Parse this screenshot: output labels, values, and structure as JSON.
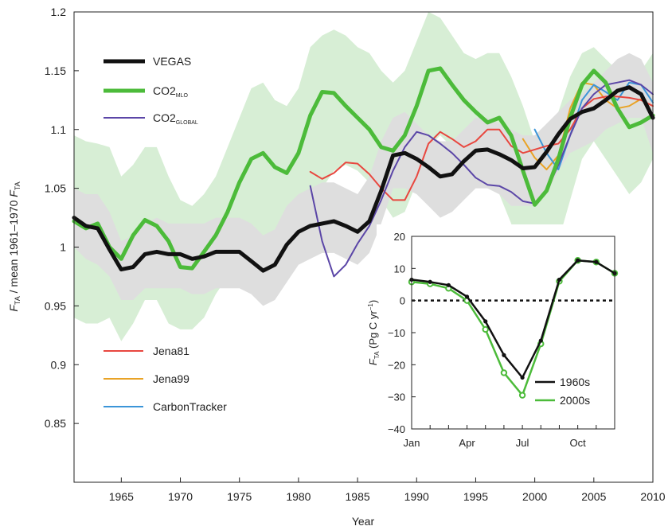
{
  "chart_data": [
    {
      "type": "line",
      "xlabel": "Year",
      "ylabel_main": "F",
      "ylabel_sub": "TA",
      "ylabel_rest": " / mean 1961–1970 ",
      "ylabel_tail_main": "F",
      "ylabel_tail_sub": "TA",
      "xlim": [
        1961,
        2010
      ],
      "ylim": [
        0.8,
        1.2
      ],
      "xticks": [
        1965,
        1970,
        1975,
        1980,
        1985,
        1990,
        1995,
        2000,
        2005,
        2010
      ],
      "yticks": [
        0.85,
        0.9,
        0.95,
        1,
        1.05,
        1.1,
        1.15,
        1.2
      ],
      "ytick_labels": [
        "0.85",
        "0.9",
        "0.95",
        "1",
        "1.05",
        "1.1",
        "1.15",
        "1.2"
      ],
      "bands": [
        {
          "name": "CO2 MLO uncertainty",
          "color": "#d7eed5",
          "x": [
            1961,
            1962,
            1963,
            1964,
            1965,
            1966,
            1967,
            1968,
            1969,
            1970,
            1971,
            1972,
            1973,
            1974,
            1975,
            1976,
            1977,
            1978,
            1979,
            1980,
            1981,
            1982,
            1983,
            1984,
            1985,
            1986,
            1987,
            1988,
            1989,
            1990,
            1991,
            1992,
            1993,
            1994,
            1995,
            1996,
            1997,
            1998,
            1999,
            2000,
            2001,
            2002,
            2003,
            2004,
            2005,
            2006,
            2007,
            2008,
            2009,
            2010
          ],
          "upper": [
            1.095,
            1.09,
            1.088,
            1.085,
            1.06,
            1.07,
            1.085,
            1.085,
            1.06,
            1.04,
            1.035,
            1.045,
            1.06,
            1.085,
            1.11,
            1.135,
            1.14,
            1.125,
            1.12,
            1.135,
            1.17,
            1.18,
            1.185,
            1.18,
            1.17,
            1.165,
            1.15,
            1.14,
            1.15,
            1.175,
            1.2,
            1.195,
            1.18,
            1.165,
            1.16,
            1.165,
            1.165,
            1.145,
            1.12,
            1.09,
            1.095,
            1.115,
            1.145,
            1.165,
            1.17,
            1.16,
            1.15,
            1.145,
            1.15,
            1.165
          ],
          "lower": [
            0.94,
            0.935,
            0.935,
            0.94,
            0.92,
            0.935,
            0.955,
            0.955,
            0.935,
            0.93,
            0.93,
            0.94,
            0.96,
            0.975,
            0.985,
            1.0,
            1.01,
            1.0,
            0.995,
            1.01,
            1.04,
            1.05,
            1.065,
            1.07,
            1.065,
            1.055,
            1.04,
            1.025,
            1.03,
            1.055,
            1.085,
            1.095,
            1.085,
            1.07,
            1.055,
            1.05,
            1.045,
            1.02,
            0.99,
            0.965,
            0.97,
            1.005,
            1.04,
            1.075,
            1.09,
            1.075,
            1.06,
            1.045,
            1.055,
            1.075
          ]
        },
        {
          "name": "VEGAS uncertainty",
          "color": "#dedede",
          "x": [
            1961,
            1962,
            1963,
            1964,
            1965,
            1966,
            1967,
            1968,
            1969,
            1970,
            1971,
            1972,
            1973,
            1974,
            1975,
            1976,
            1977,
            1978,
            1979,
            1980,
            1981,
            1982,
            1983,
            1984,
            1985,
            1986,
            1987,
            1988,
            1989,
            1990,
            1991,
            1992,
            1993,
            1994,
            1995,
            1996,
            1997,
            1998,
            1999,
            2000,
            2001,
            2002,
            2003,
            2004,
            2005,
            2006,
            2007,
            2008,
            2009,
            2010
          ],
          "upper": [
            1.05,
            1.045,
            1.045,
            1.03,
            1.005,
            1.01,
            1.02,
            1.025,
            1.02,
            1.02,
            1.02,
            1.02,
            1.025,
            1.025,
            1.025,
            1.02,
            1.01,
            1.015,
            1.035,
            1.045,
            1.05,
            1.055,
            1.055,
            1.05,
            1.045,
            1.06,
            1.09,
            1.11,
            1.115,
            1.105,
            1.095,
            1.09,
            1.09,
            1.1,
            1.11,
            1.11,
            1.105,
            1.1,
            1.095,
            1.095,
            1.105,
            1.115,
            1.125,
            1.13,
            1.14,
            1.15,
            1.16,
            1.165,
            1.16,
            1.14
          ],
          "lower": [
            1.0,
            0.99,
            0.985,
            0.975,
            0.955,
            0.955,
            0.965,
            0.965,
            0.965,
            0.965,
            0.96,
            0.96,
            0.965,
            0.965,
            0.965,
            0.96,
            0.95,
            0.955,
            0.97,
            0.985,
            0.99,
            0.995,
            0.995,
            0.99,
            0.985,
            0.995,
            1.02,
            1.05,
            1.05,
            1.045,
            1.035,
            1.025,
            1.03,
            1.04,
            1.05,
            1.05,
            1.045,
            1.035,
            1.035,
            1.035,
            1.045,
            1.065,
            1.08,
            1.085,
            1.09,
            1.1,
            1.105,
            1.11,
            1.11,
            1.08
          ]
        }
      ],
      "series": [
        {
          "name": "VEGAS",
          "color": "#111111",
          "width": 5,
          "x": [
            1961,
            1962,
            1963,
            1964,
            1965,
            1966,
            1967,
            1968,
            1969,
            1970,
            1971,
            1972,
            1973,
            1974,
            1975,
            1976,
            1977,
            1978,
            1979,
            1980,
            1981,
            1982,
            1983,
            1984,
            1985,
            1986,
            1987,
            1988,
            1989,
            1990,
            1991,
            1992,
            1993,
            1994,
            1995,
            1996,
            1997,
            1998,
            1999,
            2000,
            2001,
            2002,
            2003,
            2004,
            2005,
            2006,
            2007,
            2008,
            2009,
            2010
          ],
          "y": [
            1.025,
            1.018,
            1.016,
            0.998,
            0.981,
            0.983,
            0.994,
            0.996,
            0.994,
            0.994,
            0.99,
            0.992,
            0.996,
            0.996,
            0.996,
            0.988,
            0.98,
            0.985,
            1.002,
            1.013,
            1.018,
            1.02,
            1.022,
            1.018,
            1.013,
            1.022,
            1.048,
            1.078,
            1.08,
            1.075,
            1.068,
            1.06,
            1.062,
            1.073,
            1.082,
            1.083,
            1.079,
            1.074,
            1.067,
            1.068,
            1.081,
            1.096,
            1.109,
            1.115,
            1.118,
            1.125,
            1.133,
            1.136,
            1.13,
            1.11
          ]
        },
        {
          "name": "CO2",
          "sub": "MLO",
          "color": "#4cbb3a",
          "width": 5,
          "x": [
            1961,
            1962,
            1963,
            1964,
            1965,
            1966,
            1967,
            1968,
            1969,
            1970,
            1971,
            1972,
            1973,
            1974,
            1975,
            1976,
            1977,
            1978,
            1979,
            1980,
            1981,
            1982,
            1983,
            1984,
            1985,
            1986,
            1987,
            1988,
            1989,
            1990,
            1991,
            1992,
            1993,
            1994,
            1995,
            1996,
            1997,
            1998,
            1999,
            2000,
            2001,
            2002,
            2003,
            2004,
            2005,
            2006,
            2007,
            2008,
            2009,
            2010
          ],
          "y": [
            1.022,
            1.016,
            1.02,
            1.0,
            0.99,
            1.01,
            1.023,
            1.018,
            1.005,
            0.983,
            0.982,
            0.996,
            1.01,
            1.03,
            1.055,
            1.075,
            1.08,
            1.068,
            1.063,
            1.08,
            1.112,
            1.132,
            1.131,
            1.12,
            1.11,
            1.1,
            1.085,
            1.082,
            1.095,
            1.12,
            1.15,
            1.152,
            1.138,
            1.125,
            1.115,
            1.106,
            1.11,
            1.095,
            1.065,
            1.036,
            1.048,
            1.075,
            1.11,
            1.138,
            1.15,
            1.14,
            1.118,
            1.102,
            1.106,
            1.112
          ]
        },
        {
          "name": "CO2",
          "sub": "GLOBAL",
          "color": "#5b46a7",
          "width": 2,
          "x": [
            1981,
            1982,
            1983,
            1984,
            1985,
            1986,
            1987,
            1988,
            1989,
            1990,
            1991,
            1992,
            1993,
            1994,
            1995,
            1996,
            1997,
            1998,
            1999,
            2000,
            2001,
            2002,
            2003,
            2004,
            2005,
            2006,
            2007,
            2008,
            2009,
            2010
          ],
          "y": [
            1.052,
            1.005,
            0.975,
            0.985,
            1.003,
            1.018,
            1.04,
            1.065,
            1.085,
            1.098,
            1.095,
            1.088,
            1.08,
            1.07,
            1.059,
            1.053,
            1.052,
            1.047,
            1.039,
            1.037,
            1.048,
            1.07,
            1.095,
            1.118,
            1.13,
            1.138,
            1.14,
            1.142,
            1.138,
            1.13
          ]
        },
        {
          "name": "Jena81",
          "color": "#e8473f",
          "width": 2,
          "x": [
            1981,
            1982,
            1983,
            1984,
            1985,
            1986,
            1987,
            1988,
            1989,
            1990,
            1991,
            1992,
            1993,
            1994,
            1995,
            1996,
            1997,
            1998,
            1999,
            2000,
            2001,
            2002,
            2003,
            2004,
            2005,
            2006,
            2007,
            2008,
            2009,
            2010
          ],
          "y": [
            1.064,
            1.058,
            1.063,
            1.072,
            1.071,
            1.062,
            1.05,
            1.04,
            1.04,
            1.06,
            1.088,
            1.098,
            1.092,
            1.085,
            1.09,
            1.1,
            1.1,
            1.086,
            1.08,
            1.083,
            1.086,
            1.088,
            1.1,
            1.118,
            1.126,
            1.128,
            1.128,
            1.127,
            1.125,
            1.12
          ]
        },
        {
          "name": "Jena99",
          "color": "#e9a326",
          "width": 2,
          "x": [
            1999,
            2000,
            2001,
            2002,
            2003,
            2004,
            2005,
            2006,
            2007,
            2008,
            2009
          ],
          "y": [
            1.092,
            1.076,
            1.066,
            1.078,
            1.118,
            1.14,
            1.138,
            1.125,
            1.118,
            1.12,
            1.126
          ]
        },
        {
          "name": "CarbonTracker",
          "color": "#3b95d8",
          "width": 2,
          "x": [
            2000,
            2001,
            2002,
            2003,
            2004,
            2005,
            2006,
            2007,
            2008,
            2009,
            2010
          ],
          "y": [
            1.1,
            1.08,
            1.066,
            1.095,
            1.125,
            1.138,
            1.132,
            1.125,
            1.14,
            1.138,
            1.123
          ]
        }
      ],
      "legend_top": [
        {
          "label": "VEGAS",
          "sub": ""
        },
        {
          "label": "CO2",
          "sub": "MLO"
        },
        {
          "label": "CO2",
          "sub": "GLOBAL"
        }
      ],
      "legend_bottom": [
        {
          "label": "Jena81"
        },
        {
          "label": "Jena99"
        },
        {
          "label": "CarbonTracker"
        }
      ]
    },
    {
      "type": "line",
      "ylabel_main": "F",
      "ylabel_sub": "TA",
      "ylabel_rest": " (Pg C yr",
      "ylabel_sup": "−1",
      "ylabel_close": ")",
      "ylim": [
        -40,
        20
      ],
      "yticks": [
        20,
        10,
        0,
        -10,
        -20,
        -30,
        -40
      ],
      "ytick_labels": [
        "20",
        "10",
        "0",
        "−10",
        "−20",
        "−30",
        "−40"
      ],
      "months": [
        "Jan",
        "Feb",
        "Mar",
        "Apr",
        "May",
        "Jun",
        "Jul",
        "Aug",
        "Sep",
        "Oct",
        "Nov",
        "Dec"
      ],
      "xtick_labels": [
        {
          "month": 1,
          "label": "Jan"
        },
        {
          "month": 4,
          "label": "Apr"
        },
        {
          "month": 7,
          "label": "Jul"
        },
        {
          "month": 10,
          "label": "Oct"
        }
      ],
      "series": [
        {
          "name": "1960s",
          "color": "#111111",
          "marker": "dot",
          "values": [
            6.5,
            5.8,
            4.8,
            1.2,
            -6.5,
            -17,
            -24,
            -12.5,
            6.5,
            12.5,
            12,
            8.5
          ]
        },
        {
          "name": "2000s",
          "color": "#4cbb3a",
          "marker": "ring",
          "values": [
            5.8,
            5.2,
            3.8,
            0,
            -9,
            -22.5,
            -29.5,
            -13.5,
            6,
            12.5,
            12,
            8.5
          ]
        }
      ]
    }
  ],
  "colors": {
    "vegas": "#111111",
    "mlo": "#4cbb3a",
    "global": "#5b46a7",
    "jena81": "#e8473f",
    "jena99": "#e9a326",
    "carbontracker": "#3b95d8",
    "band_green": "#d7eed5",
    "band_gray": "#dedede"
  }
}
